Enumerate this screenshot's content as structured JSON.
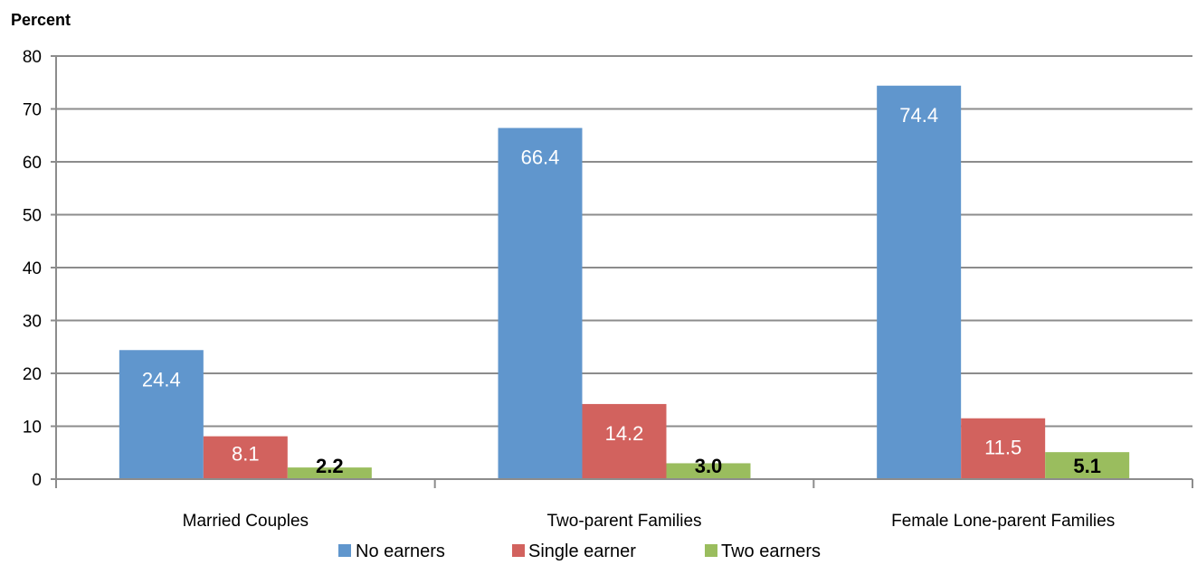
{
  "chart_data": {
    "type": "bar",
    "title": "",
    "xlabel": "",
    "ylabel": "Percent",
    "ylim": [
      0,
      80
    ],
    "yticks": [
      0,
      10,
      20,
      30,
      40,
      50,
      60,
      70,
      80
    ],
    "grid": true,
    "legend_placement": "bottom",
    "categories": [
      "Married Couples",
      "Two-parent Families",
      "Female Lone-parent Families"
    ],
    "series": [
      {
        "name": "No earners",
        "color": "#6096cd",
        "label_color": "#ffffff",
        "values": [
          24.4,
          66.4,
          74.4
        ],
        "labels": [
          "24.4",
          "66.4",
          "74.4"
        ]
      },
      {
        "name": "Single earner",
        "color": "#d2625e",
        "label_color": "#ffffff",
        "values": [
          8.1,
          14.2,
          11.5
        ],
        "labels": [
          "8.1",
          "14.2",
          "11.5"
        ]
      },
      {
        "name": "Two earners",
        "color": "#9abd5e",
        "label_color": "#000000",
        "values": [
          2.2,
          3.0,
          5.1
        ],
        "labels": [
          "2.2",
          "3.0",
          "5.1"
        ]
      }
    ]
  }
}
